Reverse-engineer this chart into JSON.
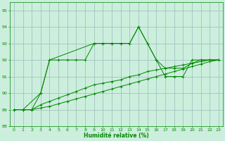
{
  "title": "",
  "xlabel": "Humidité relative (%)",
  "xlim": [
    -0.5,
    23.5
  ],
  "ylim": [
    88,
    95.5
  ],
  "yticks": [
    88,
    89,
    90,
    91,
    92,
    93,
    94,
    95
  ],
  "xticks": [
    0,
    1,
    2,
    3,
    4,
    5,
    6,
    7,
    8,
    9,
    10,
    11,
    12,
    13,
    14,
    15,
    16,
    17,
    18,
    19,
    20,
    21,
    22,
    23
  ],
  "bg_color": "#cceedd",
  "grid_color": "#99bbbb",
  "line_color": "#008800",
  "line1_x": [
    0,
    1,
    2,
    3,
    4,
    5,
    6,
    7,
    8,
    9,
    10,
    11,
    12,
    13,
    14,
    15,
    16,
    17,
    18,
    19,
    20,
    21,
    22,
    23
  ],
  "line1_y": [
    89,
    89,
    89,
    90,
    92,
    92,
    92,
    92,
    92,
    93,
    93,
    93,
    93,
    93,
    94,
    93,
    92,
    91,
    91,
    91,
    92,
    92,
    92,
    92
  ],
  "line2_x": [
    0,
    1,
    3,
    4,
    9,
    10,
    11,
    12,
    13,
    14,
    15,
    16,
    17,
    18,
    19,
    20,
    21,
    22,
    23
  ],
  "line2_y": [
    89,
    89,
    90,
    92,
    93,
    93,
    93,
    93,
    93,
    94,
    93,
    92,
    91.5,
    91.5,
    91.5,
    91.8,
    92,
    92,
    92
  ],
  "line3_x": [
    0,
    1,
    2,
    3,
    4,
    5,
    6,
    7,
    8,
    9,
    10,
    11,
    12,
    13,
    14,
    15,
    16,
    17,
    18,
    19,
    20,
    21,
    22,
    23
  ],
  "line3_y": [
    89,
    89,
    89,
    89.3,
    89.5,
    89.7,
    89.9,
    90.1,
    90.3,
    90.5,
    90.6,
    90.7,
    90.8,
    91.0,
    91.1,
    91.3,
    91.4,
    91.5,
    91.6,
    91.7,
    91.8,
    91.9,
    92.0,
    92.0
  ],
  "line4_x": [
    0,
    1,
    2,
    3,
    4,
    5,
    6,
    7,
    8,
    9,
    10,
    11,
    12,
    13,
    14,
    15,
    16,
    17,
    18,
    19,
    20,
    21,
    22,
    23
  ],
  "line4_y": [
    89,
    89,
    89,
    89.1,
    89.2,
    89.35,
    89.5,
    89.65,
    89.8,
    89.95,
    90.1,
    90.25,
    90.4,
    90.55,
    90.7,
    90.85,
    91.0,
    91.15,
    91.3,
    91.45,
    91.6,
    91.75,
    91.9,
    92.0
  ]
}
